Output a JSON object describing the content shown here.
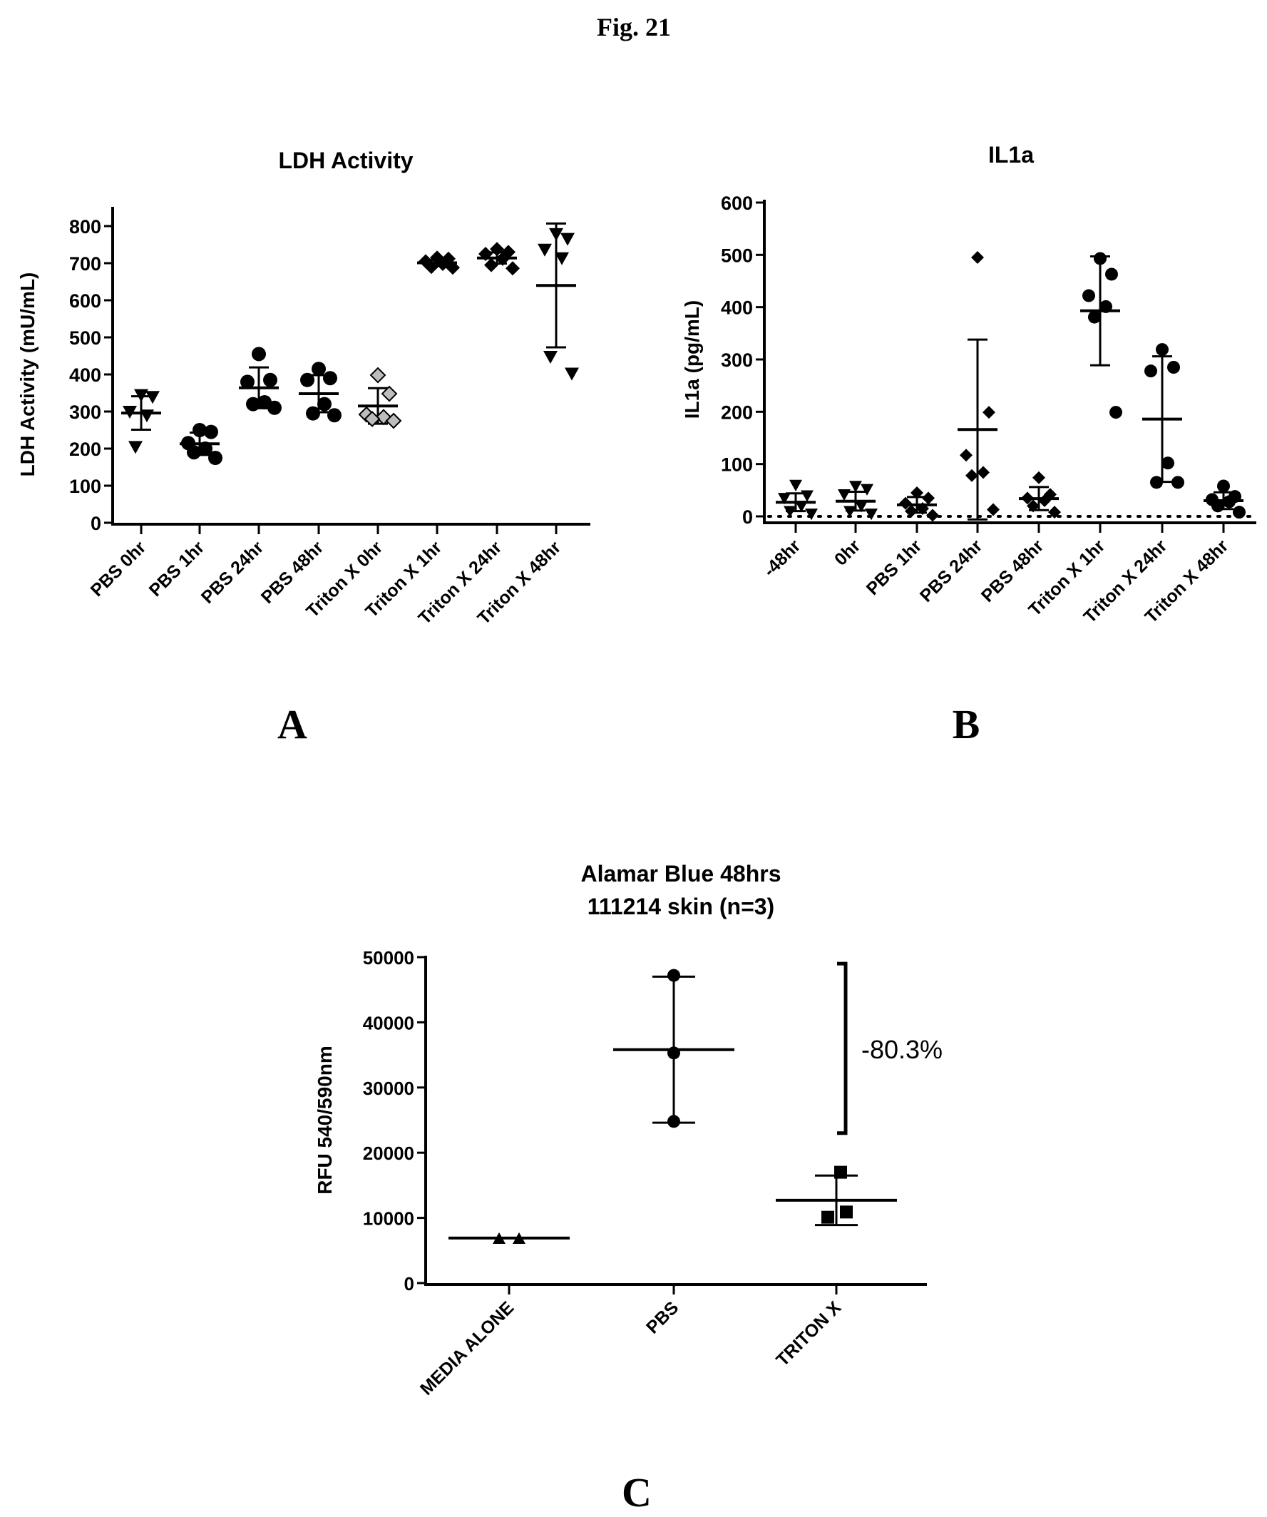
{
  "figure_title": "Fig. 21",
  "panel_labels": {
    "a": "A",
    "b": "B",
    "c": "C"
  },
  "colors": {
    "ink": "#000000",
    "open_marker_fill": "#ffffff",
    "grey_marker": "#bdbdbd"
  },
  "chart_data": [
    {
      "id": "ldh",
      "type": "scatter",
      "title": "LDH Activity",
      "xlabel": "",
      "ylabel": "LDH Activity  (mU/mL)",
      "ylim": [
        0,
        800
      ],
      "yticks": [
        0,
        100,
        200,
        300,
        400,
        500,
        600,
        700,
        800
      ],
      "ytick_labels": [
        "0",
        "100",
        "200",
        "300",
        "400",
        "500",
        "600",
        "700",
        "800"
      ],
      "grid": false,
      "categories": [
        "PBS 0hr",
        "PBS 1hr",
        "PBS 24hr",
        "PBS 48hr",
        "Triton X 0hr",
        "Triton X 1hr",
        "Triton X 24hr",
        "Triton X 48hr"
      ],
      "groups": [
        {
          "name": "PBS 0hr",
          "marker": "triangle-down",
          "values": [
            345,
            340,
            300,
            290,
            205
          ],
          "mean": 296,
          "sd": 45
        },
        {
          "name": "PBS 1hr",
          "marker": "circle",
          "values": [
            250,
            245,
            215,
            200,
            190,
            175
          ],
          "mean": 213,
          "sd": 30
        },
        {
          "name": "PBS 24hr",
          "marker": "circle",
          "values": [
            455,
            385,
            380,
            325,
            320,
            310
          ],
          "mean": 364,
          "sd": 55
        },
        {
          "name": "PBS 48hr",
          "marker": "circle",
          "values": [
            415,
            390,
            385,
            320,
            295,
            290
          ],
          "mean": 348,
          "sd": 50
        },
        {
          "name": "Triton X 0hr",
          "marker": "open-diamond",
          "values": [
            398,
            348,
            292,
            285,
            280,
            275
          ],
          "mean": 315,
          "sd": 48
        },
        {
          "name": "Triton X 1hr",
          "marker": "diamond",
          "values": [
            715,
            712,
            705,
            698,
            690,
            688
          ],
          "mean": 701,
          "sd": 8
        },
        {
          "name": "Triton X 24hr",
          "marker": "diamond",
          "values": [
            738,
            730,
            725,
            712,
            695,
            686
          ],
          "mean": 714,
          "sd": 15
        },
        {
          "name": "Triton X 48hr",
          "marker": "triangle-down",
          "values": [
            779,
            766,
            737,
            714,
            448,
            403
          ],
          "mean": 640,
          "sd": 167
        }
      ]
    },
    {
      "id": "il1a",
      "type": "scatter",
      "title": "IL1a",
      "xlabel": "",
      "ylabel": "IL1a  (pg/mL)",
      "ylim": [
        0,
        600
      ],
      "yticks": [
        0,
        100,
        200,
        300,
        400,
        500,
        600
      ],
      "ytick_labels": [
        "0",
        "100",
        "200",
        "300",
        "400",
        "500",
        "600"
      ],
      "grid": false,
      "reference_line": {
        "y": 0,
        "style": "dotted"
      },
      "categories": [
        "-48hr",
        "0hr",
        "PBS 1hr",
        "PBS 24hr",
        "PBS 48hr",
        "Triton X 1hr",
        "Triton X 24hr",
        "Triton X 48hr"
      ],
      "groups": [
        {
          "name": "-48hr",
          "marker": "triangle-down",
          "values": [
            60,
            40,
            35,
            20,
            10,
            5
          ],
          "mean": 27,
          "sd": 17
        },
        {
          "name": "0hr",
          "marker": "triangle-down",
          "values": [
            58,
            52,
            42,
            20,
            10,
            5
          ],
          "mean": 29,
          "sd": 18
        },
        {
          "name": "PBS 1hr",
          "marker": "diamond",
          "values": [
            45,
            35,
            25,
            15,
            10,
            2
          ],
          "mean": 22,
          "sd": 15
        },
        {
          "name": "PBS 24hr",
          "marker": "diamond",
          "values": [
            495,
            199,
            117,
            84,
            78,
            13
          ],
          "mean": 166,
          "sd": 172
        },
        {
          "name": "PBS 48hr",
          "marker": "diamond",
          "values": [
            74,
            42,
            35,
            30,
            20,
            8
          ],
          "mean": 34,
          "sd": 22
        },
        {
          "name": "Triton X 1hr",
          "marker": "circle",
          "values": [
            493,
            463,
            422,
            401,
            381,
            199
          ],
          "mean": 393,
          "sd": 104
        },
        {
          "name": "Triton X 24hr",
          "marker": "circle",
          "values": [
            319,
            285,
            278,
            102,
            65,
            65
          ],
          "mean": 186,
          "sd": 120
        },
        {
          "name": "Triton X 48hr",
          "marker": "circle",
          "values": [
            58,
            38,
            32,
            28,
            20,
            8
          ],
          "mean": 30,
          "sd": 16
        }
      ]
    },
    {
      "id": "alamar",
      "type": "scatter",
      "title": [
        "Alamar Blue 48hrs",
        "111214 skin (n=3)"
      ],
      "xlabel": "",
      "ylabel": "RFU 540/590nm",
      "ylim": [
        0,
        50000
      ],
      "yticks": [
        0,
        10000,
        20000,
        30000,
        40000,
        50000
      ],
      "ytick_labels": [
        "0",
        "10000",
        "20000",
        "30000",
        "40000",
        "50000"
      ],
      "grid": false,
      "categories": [
        "MEDIA ALONE",
        "PBS",
        "TRITON X"
      ],
      "groups": [
        {
          "name": "MEDIA ALONE",
          "marker": "triangle-up",
          "values": [
            6800,
            6800
          ],
          "mean": 6900,
          "sd": 0
        },
        {
          "name": "PBS",
          "marker": "circle",
          "values": [
            47200,
            35300,
            24800
          ],
          "mean": 35800,
          "sd": 11200
        },
        {
          "name": "TRITON X",
          "marker": "square",
          "values": [
            17000,
            10900,
            10100
          ],
          "mean": 12700,
          "sd": 3800
        }
      ],
      "annotation": {
        "text": "-80.3%",
        "bracket_from": 49000,
        "bracket_to": 23000
      }
    }
  ]
}
